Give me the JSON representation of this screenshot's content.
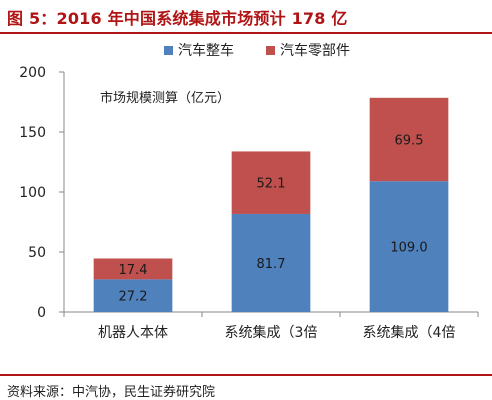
{
  "header": {
    "title": "图 5：2016 年中国系统集成市场预计 178 亿"
  },
  "footer": {
    "source": "资料来源：中汽协，民生证券研究院"
  },
  "colors": {
    "accent": "#b01414",
    "series_1": "#4f81bd",
    "series_2": "#c0504d"
  },
  "chart_data": {
    "type": "bar",
    "stacked": true,
    "annotation": "市场规模测算（亿元）",
    "categories": [
      "机器人本体",
      "系统集成（3倍",
      "系统集成（4倍"
    ],
    "series": [
      {
        "name": "汽车整车",
        "values": [
          27.2,
          81.7,
          109.0
        ],
        "labels": [
          "27.2",
          "81.7",
          "109.0"
        ],
        "color": "#4f81bd"
      },
      {
        "name": "汽车零部件",
        "values": [
          17.4,
          52.1,
          69.5
        ],
        "labels": [
          "17.4",
          "52.1",
          "69.5"
        ],
        "color": "#c0504d"
      }
    ],
    "yticks": [
      0,
      50,
      100,
      150,
      200
    ],
    "ylim": [
      0,
      200
    ],
    "grid": false,
    "legend_position": "top"
  }
}
